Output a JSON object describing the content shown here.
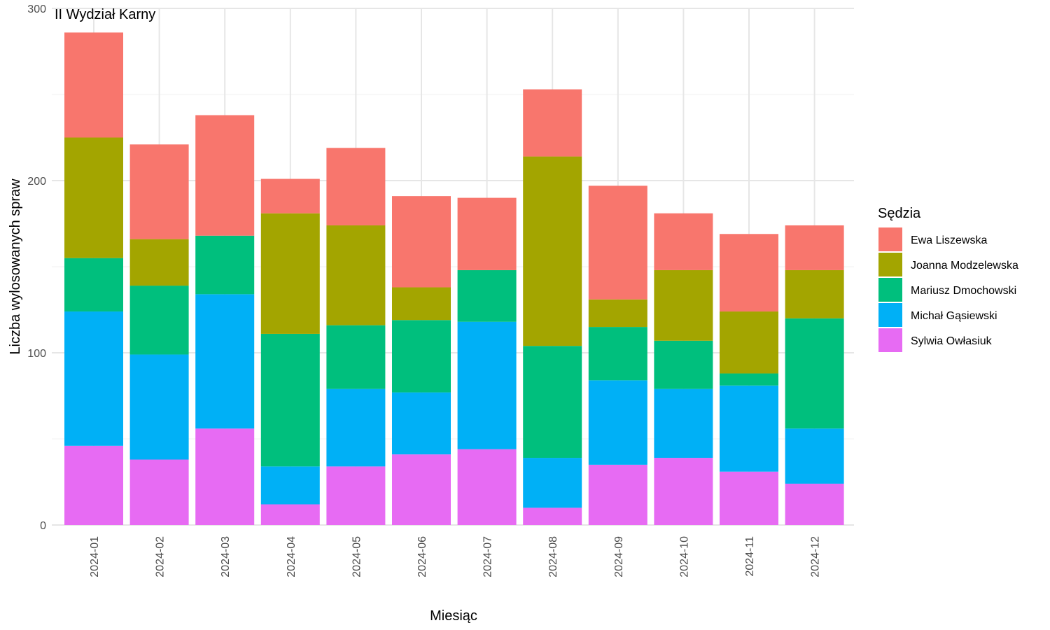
{
  "chart_data": {
    "type": "bar",
    "stacked": true,
    "title": "II Wydział Karny",
    "xlabel": "Miesiąc",
    "ylabel": "Liczba wylosowanych spraw",
    "ylim": [
      0,
      300
    ],
    "yticks": [
      0,
      100,
      200,
      300
    ],
    "grid": true,
    "legend_title": "Sędzia",
    "legend_position": "right",
    "categories": [
      "2024-01",
      "2024-02",
      "2024-03",
      "2024-04",
      "2024-05",
      "2024-06",
      "2024-07",
      "2024-08",
      "2024-09",
      "2024-10",
      "2024-11",
      "2024-12"
    ],
    "series": [
      {
        "name": "Sylwia Owłasiuk",
        "color": "#E76BF3",
        "values": [
          46,
          38,
          56,
          12,
          34,
          41,
          44,
          10,
          35,
          39,
          31,
          24
        ]
      },
      {
        "name": "Michał Gąsiewski",
        "color": "#00B0F6",
        "values": [
          78,
          61,
          78,
          22,
          45,
          36,
          74,
          29,
          49,
          40,
          50,
          32
        ]
      },
      {
        "name": "Mariusz Dmochowski",
        "color": "#00BF7D",
        "values": [
          31,
          40,
          34,
          77,
          37,
          42,
          30,
          65,
          31,
          28,
          7,
          64
        ]
      },
      {
        "name": "Joanna Modzelewska",
        "color": "#A3A500",
        "values": [
          70,
          27,
          0,
          70,
          58,
          19,
          0,
          110,
          16,
          41,
          36,
          28
        ]
      },
      {
        "name": "Ewa Liszewska",
        "color": "#F8766D",
        "values": [
          61,
          55,
          70,
          20,
          45,
          53,
          42,
          39,
          66,
          33,
          45,
          26
        ]
      }
    ],
    "legend_order": [
      "Ewa Liszewska",
      "Joanna Modzelewska",
      "Mariusz Dmochowski",
      "Michał Gąsiewski",
      "Sylwia Owłasiuk"
    ]
  }
}
